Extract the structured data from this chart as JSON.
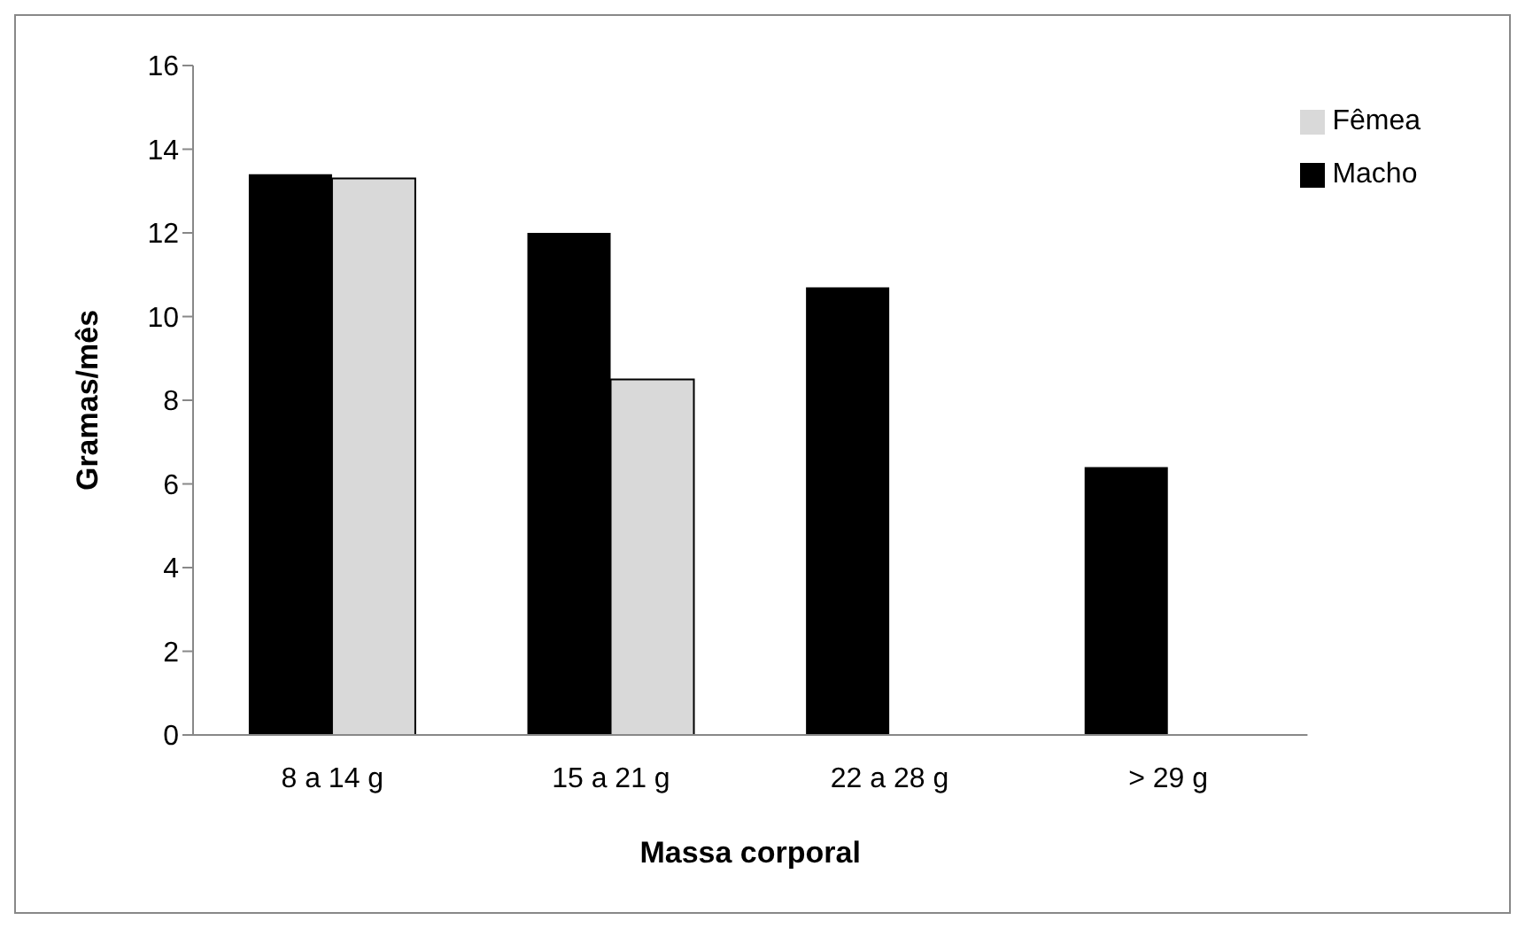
{
  "chart_data": {
    "type": "bar",
    "xlabel": "Massa corporal",
    "ylabel": "Gramas/mês",
    "categories": [
      "8 a 14 g",
      "15 a 21 g",
      "22 a 28 g",
      "> 29 g"
    ],
    "series": [
      {
        "name": "Macho",
        "color": "#000000",
        "values": [
          13.4,
          12.0,
          10.7,
          6.4
        ]
      },
      {
        "name": "Fêmea",
        "color": "#d9d9d9",
        "values": [
          13.3,
          8.5,
          null,
          null
        ]
      }
    ],
    "ylim": [
      0,
      16
    ],
    "yticks": [
      0,
      2,
      4,
      6,
      8,
      10,
      12,
      14,
      16
    ],
    "grid": false,
    "legend": "top right"
  }
}
